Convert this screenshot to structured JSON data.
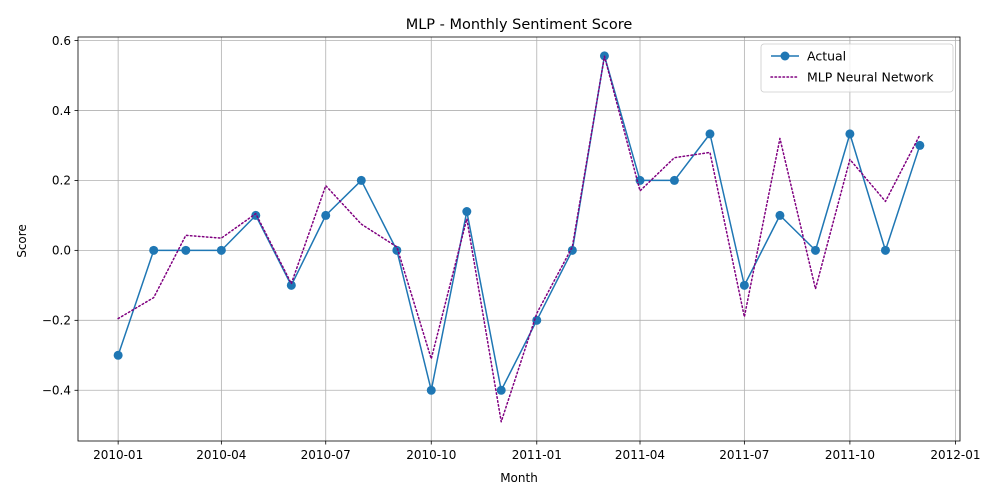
{
  "chart_data": {
    "type": "line",
    "title": "MLP - Monthly Sentiment Score",
    "xlabel": "Month",
    "ylabel": "Score",
    "x": [
      "2010-01",
      "2010-02",
      "2010-03",
      "2010-04",
      "2010-05",
      "2010-06",
      "2010-07",
      "2010-08",
      "2010-09",
      "2010-10",
      "2010-11",
      "2010-12",
      "2011-01",
      "2011-02",
      "2011-03",
      "2011-04",
      "2011-05",
      "2011-06",
      "2011-07",
      "2011-08",
      "2011-09",
      "2011-10",
      "2011-11",
      "2011-12"
    ],
    "x_ticks": [
      "2010-01",
      "2010-04",
      "2010-07",
      "2010-10",
      "2011-01",
      "2011-04",
      "2011-07",
      "2011-10",
      "2012-01"
    ],
    "xlim": [
      "2009-11-27",
      "2012-01-05"
    ],
    "ylim": [
      -0.545,
      0.61
    ],
    "y_ticks": [
      -0.4,
      -0.2,
      0.0,
      0.2,
      0.4,
      0.6
    ],
    "y_tick_labels": [
      "−0.4",
      "−0.2",
      "0.0",
      "0.2",
      "0.4",
      "0.6"
    ],
    "grid": true,
    "legend_position": "top-right",
    "series": [
      {
        "name": "Actual",
        "color": "#1f77b4",
        "style": "solid-with-circle-markers",
        "values": [
          -0.3,
          0.0,
          0.0,
          0.0,
          0.1,
          -0.1,
          0.1,
          0.2,
          0.0,
          -0.4,
          0.111,
          -0.4,
          -0.2,
          0.0,
          0.556,
          0.2,
          0.2,
          0.333,
          -0.1,
          0.1,
          0.0,
          0.333,
          0.0,
          0.3
        ]
      },
      {
        "name": "MLP Neural Network",
        "color": "#800080",
        "style": "dotted",
        "values": [
          -0.195,
          -0.135,
          0.043,
          0.035,
          0.105,
          -0.095,
          0.185,
          0.075,
          0.01,
          -0.31,
          0.09,
          -0.49,
          -0.18,
          0.01,
          0.555,
          0.17,
          0.265,
          0.28,
          -0.19,
          0.32,
          -0.11,
          0.26,
          0.14,
          0.33
        ]
      }
    ]
  }
}
